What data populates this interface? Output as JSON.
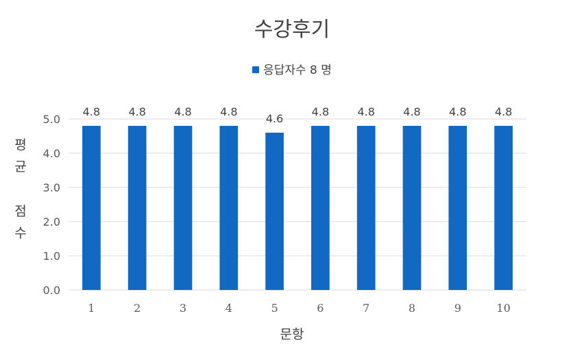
{
  "chart_data": {
    "type": "bar",
    "title": "수강후기",
    "xlabel": "문항",
    "ylabel": "평\n균\n\n점\n수",
    "categories": [
      "1",
      "2",
      "3",
      "4",
      "5",
      "6",
      "7",
      "8",
      "9",
      "10"
    ],
    "series": [
      {
        "name": "응답자수 8 명",
        "values": [
          4.8,
          4.8,
          4.8,
          4.8,
          4.6,
          4.8,
          4.8,
          4.8,
          4.8,
          4.8
        ],
        "data_labels": [
          "4.8",
          "4.8",
          "4.8",
          "4.8",
          "4.6",
          "4.8",
          "4.8",
          "4.8",
          "4.8",
          "4.8"
        ]
      }
    ],
    "ylim": [
      0,
      5
    ],
    "yticks": [
      "0.0",
      "1.0",
      "2.0",
      "3.0",
      "4.0",
      "5.0"
    ],
    "grid": true,
    "legend_position": "top",
    "colors": {
      "bar": "#1169C4",
      "grid": "#D9D9D9",
      "text": "#595959"
    }
  }
}
